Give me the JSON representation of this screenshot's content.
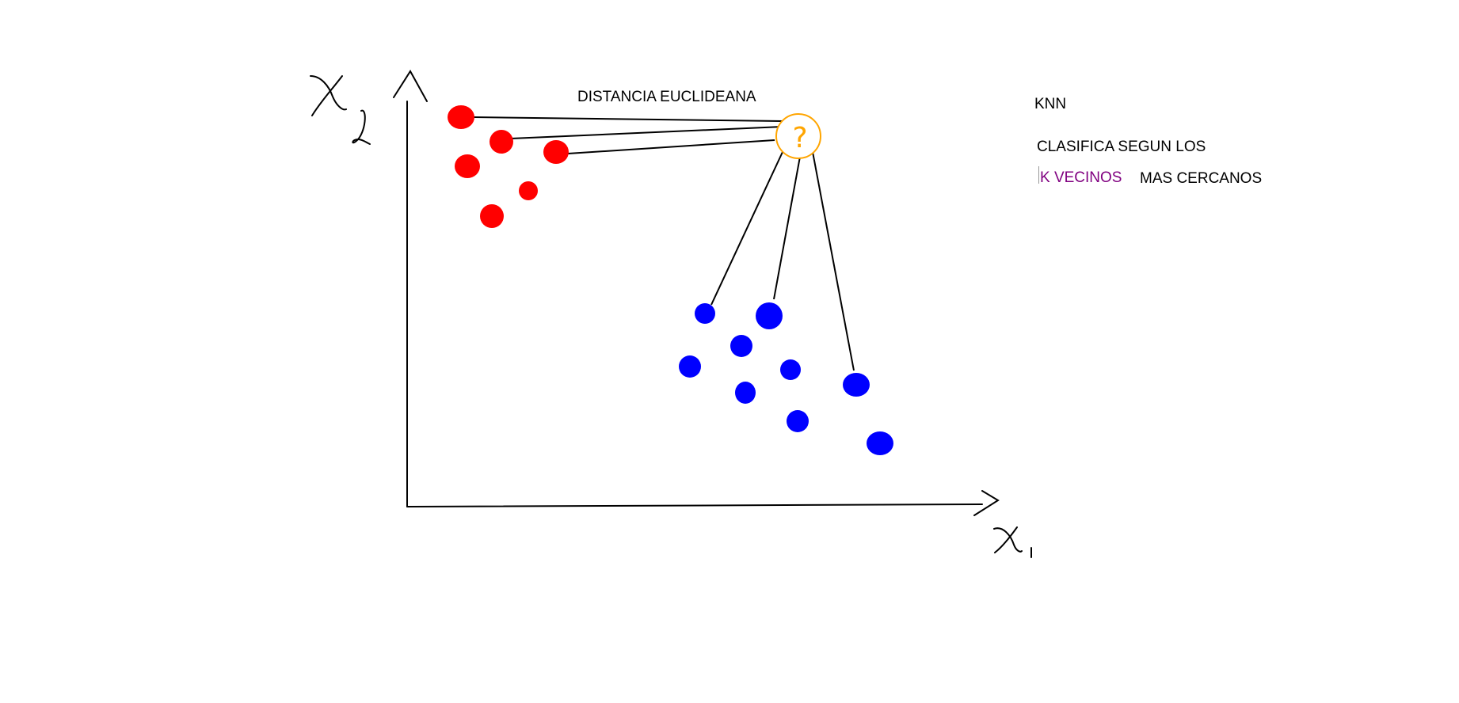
{
  "diagram": {
    "title": "DISTANCIA EUCLIDEANA",
    "side_heading": "KNN",
    "description_line1": "CLASIFICA SEGUN LOS",
    "description_k": "K VECINOS",
    "description_rest": "MAS CERCANOS",
    "query_symbol": "?",
    "colors": {
      "class_a": "#ff0000",
      "class_b": "#0000ff",
      "query": "#ffa500",
      "k_text": "#800080",
      "lines": "#000000"
    },
    "icons": [
      "handwritten-x2-axis-label-icon",
      "handwritten-x1-axis-label-icon",
      "question-mark-icon"
    ]
  }
}
